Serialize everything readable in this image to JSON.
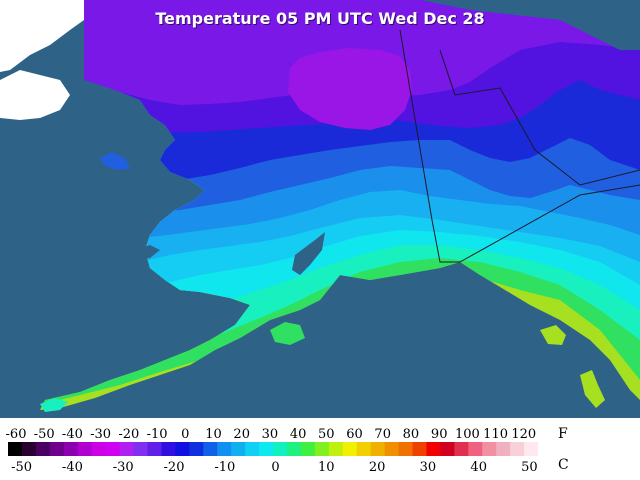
{
  "map": {
    "title": "Temperature 05 PM UTC Wed Dec 28",
    "colors": {
      "ocean": "#2e6387",
      "land_unmapped": "#ffffff",
      "border": "#1a1a2e"
    },
    "temperature_zones": [
      {
        "name": "coldest-core",
        "color": "#9a16e6"
      },
      {
        "name": "very-cold",
        "color": "#7a18e8"
      },
      {
        "name": "cold-violet",
        "color": "#5212e0"
      },
      {
        "name": "deep-blue",
        "color": "#1a2ad8"
      },
      {
        "name": "blue",
        "color": "#1f5fe0"
      },
      {
        "name": "azure",
        "color": "#1a90ec"
      },
      {
        "name": "sky",
        "color": "#18b0f0"
      },
      {
        "name": "light-cyan",
        "color": "#15ccf2"
      },
      {
        "name": "cyan",
        "color": "#10e6ee"
      },
      {
        "name": "aqua-green",
        "color": "#18f0c0"
      },
      {
        "name": "green",
        "color": "#30e060"
      },
      {
        "name": "yellow-green",
        "color": "#a6e020"
      }
    ]
  },
  "legend": {
    "fahrenheit_unit": "F",
    "celsius_unit": "C",
    "fahrenheit_labels": [
      "-60",
      "-50",
      "-40",
      "-30",
      "-20",
      "-10",
      "0",
      "10",
      "20",
      "30",
      "40",
      "50",
      "60",
      "70",
      "80",
      "90",
      "100",
      "110",
      "120"
    ],
    "celsius_labels": [
      "-50",
      "-40",
      "-30",
      "-20",
      "-10",
      "0",
      "10",
      "20",
      "30",
      "40",
      "50"
    ],
    "colors": [
      "#000000",
      "#2a0030",
      "#4a0060",
      "#6e008c",
      "#8c00b0",
      "#b000d0",
      "#cc00e6",
      "#d000f0",
      "#b020f0",
      "#8030f0",
      "#6020e8",
      "#3010e0",
      "#1010e0",
      "#1030e0",
      "#1060e8",
      "#1090f0",
      "#10b0f0",
      "#10d0f4",
      "#10e8f0",
      "#10f0c0",
      "#20f080",
      "#40f040",
      "#80f020",
      "#c0f010",
      "#f0f000",
      "#f0d000",
      "#f0b000",
      "#f09000",
      "#f07000",
      "#f04000",
      "#f00000",
      "#d00020",
      "#e03050",
      "#f06080",
      "#f090a0",
      "#f0b0c0",
      "#f8d0d8",
      "#ffe8f0",
      "#ffffff"
    ]
  }
}
